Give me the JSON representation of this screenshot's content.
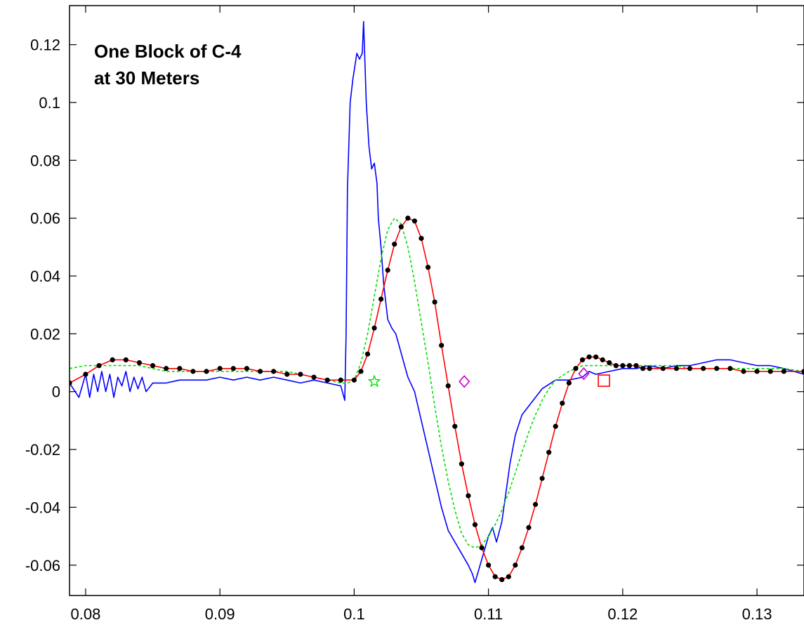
{
  "chart_data": {
    "type": "line",
    "title": "",
    "xlabel": "",
    "ylabel": "",
    "xlim": [
      0.0788,
      0.1335
    ],
    "ylim": [
      -0.0705,
      0.1335
    ],
    "grid": false,
    "xticks": [
      0.08,
      0.09,
      0.1,
      0.11,
      0.12,
      0.13
    ],
    "xtick_labels": [
      "0.08",
      "0.09",
      "0.1",
      "0.11",
      "0.12",
      "0.13"
    ],
    "yticks": [
      0.12,
      0.1,
      0.08,
      0.06,
      0.04,
      0.02,
      0,
      -0.02,
      -0.04,
      -0.06
    ],
    "ytick_labels": [
      "0.12",
      "0.1",
      "0.08",
      "0.06",
      "0.04",
      "0.02",
      "0",
      "-0.02",
      "-0.04",
      "-0.06"
    ],
    "annotation": {
      "lines": [
        "One Block of C-4",
        "at 30 Meters"
      ]
    },
    "series": [
      {
        "style": "solid",
        "color": "#0000ff",
        "x": [
          0.0788,
          0.0795,
          0.08,
          0.0803,
          0.0806,
          0.0809,
          0.0812,
          0.0815,
          0.0818,
          0.0821,
          0.0824,
          0.0827,
          0.083,
          0.0833,
          0.0836,
          0.0839,
          0.0842,
          0.0845,
          0.085,
          0.086,
          0.087,
          0.088,
          0.089,
          0.09,
          0.091,
          0.092,
          0.093,
          0.094,
          0.095,
          0.096,
          0.097,
          0.098,
          0.099,
          0.0993,
          0.0994,
          0.0995,
          0.0997,
          0.0999,
          0.1002,
          0.1004,
          0.1006,
          0.1007,
          0.1009,
          0.1011,
          0.1013,
          0.1015,
          0.1017,
          0.1018,
          0.102,
          0.1022,
          0.1025,
          0.1028,
          0.1031,
          0.1034,
          0.1037,
          0.104,
          0.1045,
          0.105,
          0.1055,
          0.106,
          0.1065,
          0.107,
          0.1075,
          0.108,
          0.1085,
          0.1088,
          0.109,
          0.1095,
          0.11,
          0.1103,
          0.1106,
          0.111,
          0.1113,
          0.1116,
          0.112,
          0.1125,
          0.113,
          0.1135,
          0.114,
          0.115,
          0.116,
          0.117,
          0.1175,
          0.118,
          0.119,
          0.12,
          0.121,
          0.122,
          0.123,
          0.124,
          0.125,
          0.126,
          0.127,
          0.128,
          0.129,
          0.13,
          0.131,
          0.132,
          0.1335
        ],
        "y": [
          0.003,
          -0.002,
          0.006,
          -0.002,
          0.006,
          0.0,
          0.007,
          0.0,
          0.006,
          -0.002,
          0.005,
          0.002,
          0.007,
          0.0,
          0.005,
          0.001,
          0.005,
          0.0,
          0.003,
          0.003,
          0.004,
          0.004,
          0.004,
          0.005,
          0.004,
          0.005,
          0.004,
          0.005,
          0.004,
          0.003,
          0.004,
          0.003,
          0.002,
          -0.003,
          0.02,
          0.07,
          0.1,
          0.108,
          0.117,
          0.115,
          0.117,
          0.128,
          0.1,
          0.085,
          0.077,
          0.079,
          0.072,
          0.06,
          0.05,
          0.037,
          0.025,
          0.022,
          0.02,
          0.015,
          0.01,
          0.005,
          0.0,
          -0.01,
          -0.02,
          -0.03,
          -0.04,
          -0.048,
          -0.052,
          -0.056,
          -0.06,
          -0.063,
          -0.066,
          -0.058,
          -0.05,
          -0.047,
          -0.052,
          -0.045,
          -0.035,
          -0.025,
          -0.015,
          -0.008,
          -0.005,
          -0.002,
          0.001,
          0.004,
          0.004,
          0.005,
          0.007,
          0.006,
          0.007,
          0.008,
          0.008,
          0.009,
          0.008,
          0.009,
          0.009,
          0.01,
          0.011,
          0.011,
          0.01,
          0.009,
          0.009,
          0.008,
          0.006
        ]
      },
      {
        "style": "dashed",
        "color": "#00e000",
        "x": [
          0.0788,
          0.08,
          0.081,
          0.082,
          0.083,
          0.084,
          0.085,
          0.086,
          0.087,
          0.088,
          0.089,
          0.09,
          0.091,
          0.092,
          0.093,
          0.094,
          0.095,
          0.096,
          0.097,
          0.098,
          0.099,
          0.0995,
          0.1,
          0.1005,
          0.101,
          0.1015,
          0.102,
          0.1025,
          0.103,
          0.1035,
          0.104,
          0.1045,
          0.105,
          0.1055,
          0.106,
          0.1065,
          0.107,
          0.1075,
          0.108,
          0.1085,
          0.109,
          0.1095,
          0.11,
          0.1105,
          0.111,
          0.1115,
          0.112,
          0.1125,
          0.113,
          0.1135,
          0.114,
          0.1145,
          0.115,
          0.116,
          0.117,
          0.118,
          0.119,
          0.12,
          0.121,
          0.122,
          0.123,
          0.124,
          0.125,
          0.126,
          0.127,
          0.128,
          0.129,
          0.13,
          0.131,
          0.132,
          0.1335
        ],
        "y": [
          0.008,
          0.009,
          0.009,
          0.009,
          0.009,
          0.009,
          0.008,
          0.007,
          0.007,
          0.007,
          0.007,
          0.007,
          0.007,
          0.007,
          0.007,
          0.007,
          0.007,
          0.006,
          0.005,
          0.004,
          0.003,
          0.003,
          0.004,
          0.01,
          0.02,
          0.033,
          0.046,
          0.056,
          0.06,
          0.058,
          0.05,
          0.038,
          0.024,
          0.01,
          -0.005,
          -0.019,
          -0.031,
          -0.041,
          -0.049,
          -0.053,
          -0.054,
          -0.053,
          -0.05,
          -0.046,
          -0.041,
          -0.035,
          -0.028,
          -0.021,
          -0.014,
          -0.008,
          -0.003,
          0.001,
          0.004,
          0.007,
          0.009,
          0.009,
          0.009,
          0.009,
          0.009,
          0.009,
          0.009,
          0.009,
          0.008,
          0.008,
          0.008,
          0.008,
          0.008,
          0.008,
          0.008,
          0.008,
          0.007
        ]
      },
      {
        "style": "solid-dotted",
        "color": "#ff0000",
        "marker_color": "#000000",
        "x": [
          0.0788,
          0.08,
          0.081,
          0.082,
          0.083,
          0.084,
          0.085,
          0.086,
          0.087,
          0.088,
          0.089,
          0.09,
          0.091,
          0.092,
          0.093,
          0.094,
          0.095,
          0.096,
          0.097,
          0.098,
          0.099,
          0.1,
          0.1005,
          0.101,
          0.1015,
          0.102,
          0.1025,
          0.103,
          0.1035,
          0.104,
          0.1045,
          0.105,
          0.1055,
          0.106,
          0.1065,
          0.107,
          0.1075,
          0.108,
          0.1085,
          0.109,
          0.1095,
          0.11,
          0.1105,
          0.111,
          0.1115,
          0.112,
          0.1125,
          0.113,
          0.1135,
          0.114,
          0.1145,
          0.115,
          0.1155,
          0.116,
          0.1165,
          0.117,
          0.1175,
          0.118,
          0.1185,
          0.119,
          0.1195,
          0.12,
          0.1205,
          0.121,
          0.1215,
          0.122,
          0.123,
          0.124,
          0.125,
          0.126,
          0.127,
          0.128,
          0.129,
          0.13,
          0.131,
          0.132,
          0.1335
        ],
        "y": [
          0.003,
          0.006,
          0.009,
          0.011,
          0.011,
          0.01,
          0.009,
          0.008,
          0.008,
          0.007,
          0.007,
          0.008,
          0.008,
          0.008,
          0.007,
          0.007,
          0.006,
          0.006,
          0.005,
          0.004,
          0.004,
          0.004,
          0.007,
          0.013,
          0.022,
          0.032,
          0.042,
          0.051,
          0.057,
          0.06,
          0.059,
          0.053,
          0.043,
          0.031,
          0.016,
          0.002,
          -0.012,
          -0.025,
          -0.036,
          -0.046,
          -0.054,
          -0.06,
          -0.064,
          -0.065,
          -0.064,
          -0.06,
          -0.054,
          -0.047,
          -0.039,
          -0.03,
          -0.021,
          -0.012,
          -0.004,
          0.003,
          0.008,
          0.011,
          0.012,
          0.012,
          0.011,
          0.01,
          0.009,
          0.009,
          0.009,
          0.009,
          0.008,
          0.008,
          0.008,
          0.008,
          0.008,
          0.008,
          0.008,
          0.008,
          0.007,
          0.007,
          0.007,
          0.007,
          0.007
        ]
      }
    ],
    "markers": [
      {
        "shape": "star",
        "color": "#00e000",
        "x": 0.1015,
        "y": 0.0035
      },
      {
        "shape": "diamond",
        "color": "#cc00cc",
        "x": 0.1082,
        "y": 0.0035
      },
      {
        "shape": "diamond",
        "color": "#cc00cc",
        "x": 0.1171,
        "y": 0.0062
      },
      {
        "shape": "square",
        "color": "#ff0000",
        "x": 0.1186,
        "y": 0.0038
      }
    ]
  }
}
